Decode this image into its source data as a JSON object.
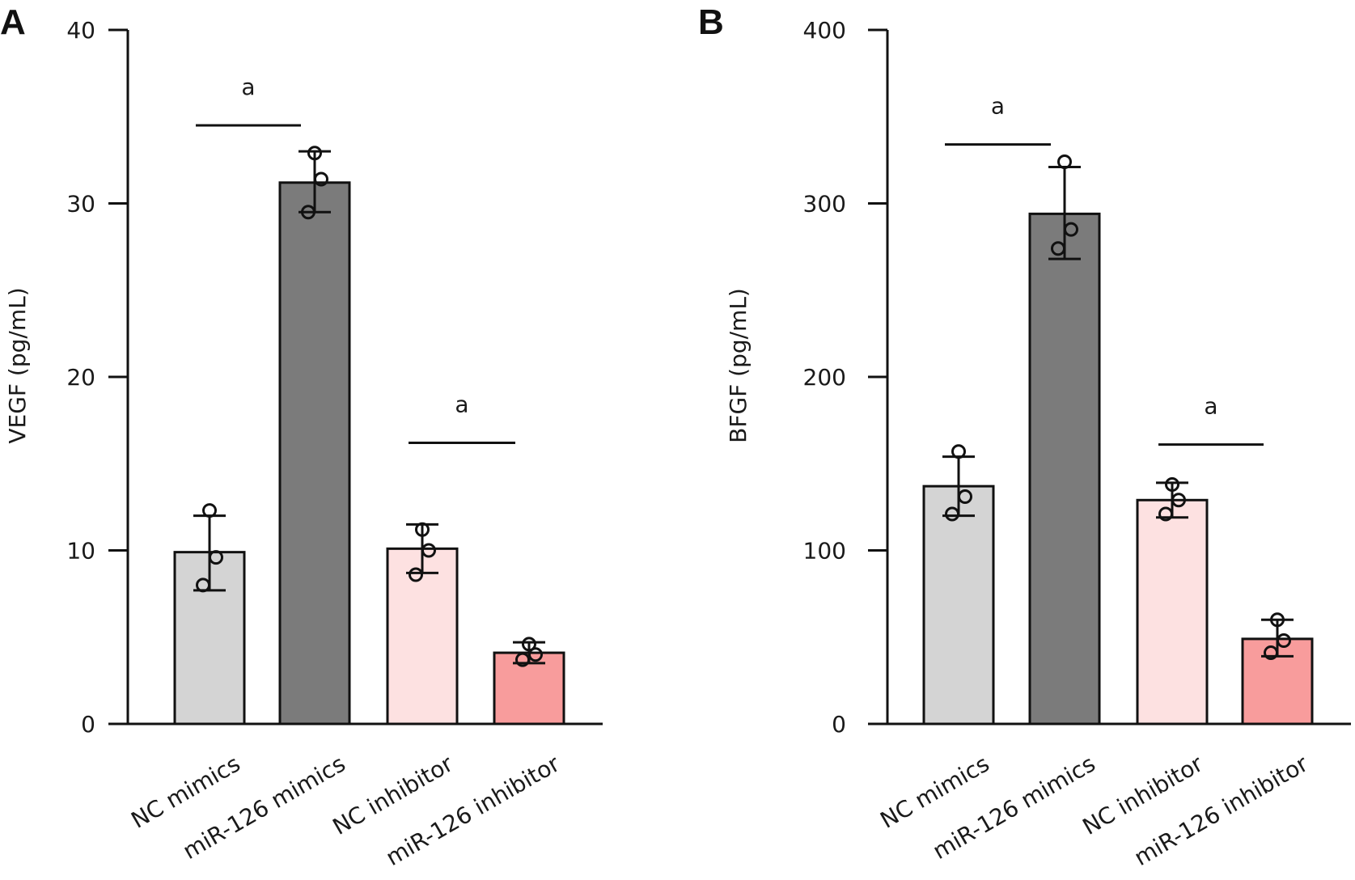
{
  "chart_data": [
    {
      "type": "bar",
      "panel": "A",
      "categories": [
        "NC mimics",
        "miR-126 mimics",
        "NC inhibitor",
        "miR-126 inhibitor"
      ],
      "values": [
        9.9,
        31.2,
        10.1,
        4.1
      ],
      "errors": [
        [
          7.7,
          12.0
        ],
        [
          29.5,
          33.0
        ],
        [
          8.7,
          11.5
        ],
        [
          3.5,
          4.7
        ]
      ],
      "points": [
        [
          12.3,
          9.6,
          8.0
        ],
        [
          32.9,
          31.4,
          29.5
        ],
        [
          11.2,
          10.0,
          8.6
        ],
        [
          4.6,
          4.0,
          3.7
        ]
      ],
      "colors": [
        "#d4d4d4",
        "#7b7b7b",
        "#fde1e1",
        "#f89c9c"
      ],
      "xlabel": "",
      "ylabel": "VEGF (pg/mL)",
      "ylim": [
        0,
        40
      ],
      "yticks": [
        0,
        10,
        20,
        30,
        40
      ],
      "significance": [
        {
          "from": 0,
          "to": 1,
          "level": 34.5,
          "label": "a"
        },
        {
          "from": 2,
          "to": 3,
          "level": 16.2,
          "label": "a"
        }
      ],
      "grid": false,
      "legend": "none"
    },
    {
      "type": "bar",
      "panel": "B",
      "categories": [
        "NC mimics",
        "miR-126 mimics",
        "NC inhibitor",
        "miR-126 inhibitor"
      ],
      "values": [
        137,
        294,
        129,
        49
      ],
      "errors": [
        [
          120,
          154
        ],
        [
          268,
          321
        ],
        [
          119,
          139
        ],
        [
          39,
          60
        ]
      ],
      "points": [
        [
          157,
          131,
          121
        ],
        [
          324,
          285,
          274
        ],
        [
          138,
          129,
          121
        ],
        [
          60,
          48,
          41
        ]
      ],
      "colors": [
        "#d4d4d4",
        "#7b7b7b",
        "#fde1e1",
        "#f89c9c"
      ],
      "xlabel": "",
      "ylabel": "BFGF (pg/mL)",
      "ylim": [
        0,
        400
      ],
      "yticks": [
        0,
        100,
        200,
        300,
        400
      ],
      "significance": [
        {
          "from": 0,
          "to": 1,
          "level": 334,
          "label": "a"
        },
        {
          "from": 2,
          "to": 3,
          "level": 161,
          "label": "a"
        }
      ],
      "grid": false,
      "legend": "none"
    }
  ]
}
